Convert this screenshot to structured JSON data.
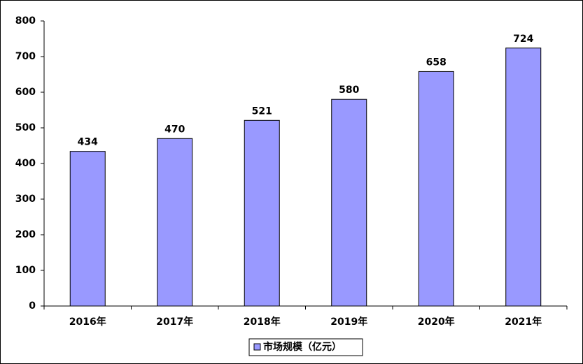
{
  "chart_data": {
    "type": "bar",
    "categories": [
      "2016年",
      "2017年",
      "2018年",
      "2019年",
      "2020年",
      "2021年"
    ],
    "series": [
      {
        "name": "市场规模（亿元）",
        "color": "#9999ff",
        "values": [
          434,
          470,
          521,
          580,
          658,
          724
        ]
      }
    ],
    "ylim": [
      0,
      800
    ],
    "yticks": [
      0,
      100,
      200,
      300,
      400,
      500,
      600,
      700,
      800
    ],
    "grid": false,
    "legend": "bottom"
  }
}
